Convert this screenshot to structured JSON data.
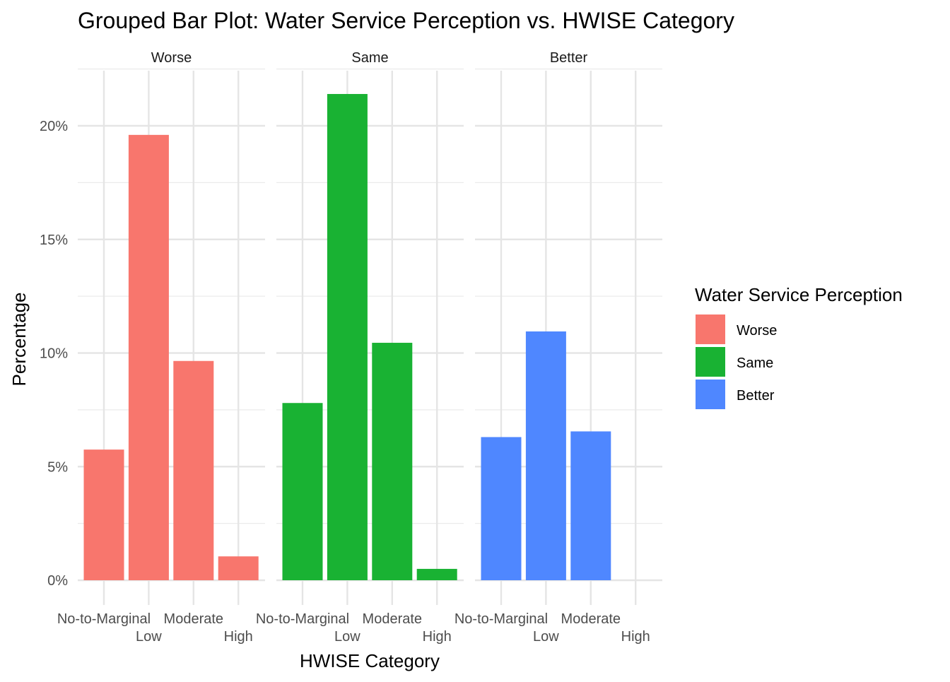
{
  "chart_data": {
    "type": "bar",
    "title": "Grouped Bar Plot: Water Service Perception vs. HWISE Category",
    "xlabel": "HWISE Category",
    "ylabel": "Percentage",
    "ylim": [
      0,
      22.5
    ],
    "y_ticks": [
      0,
      5,
      10,
      15,
      20
    ],
    "y_tick_labels": [
      "0%",
      "5%",
      "10%",
      "15%",
      "20%"
    ],
    "categories": [
      "No-to-Marginal",
      "Low",
      "Moderate",
      "High"
    ],
    "grid": true,
    "legend": {
      "title": "Water Service Perception",
      "placement": "right",
      "entries": [
        "Worse",
        "Same",
        "Better"
      ]
    },
    "series": [
      {
        "name": "Worse",
        "color": "#F8766D",
        "values": [
          5.75,
          19.6,
          9.65,
          1.05
        ]
      },
      {
        "name": "Same",
        "color": "#19B233",
        "values": [
          7.8,
          21.4,
          10.45,
          0.5
        ]
      },
      {
        "name": "Better",
        "color": "#4F87FF",
        "values": [
          6.3,
          10.95,
          6.55,
          0
        ]
      }
    ]
  }
}
